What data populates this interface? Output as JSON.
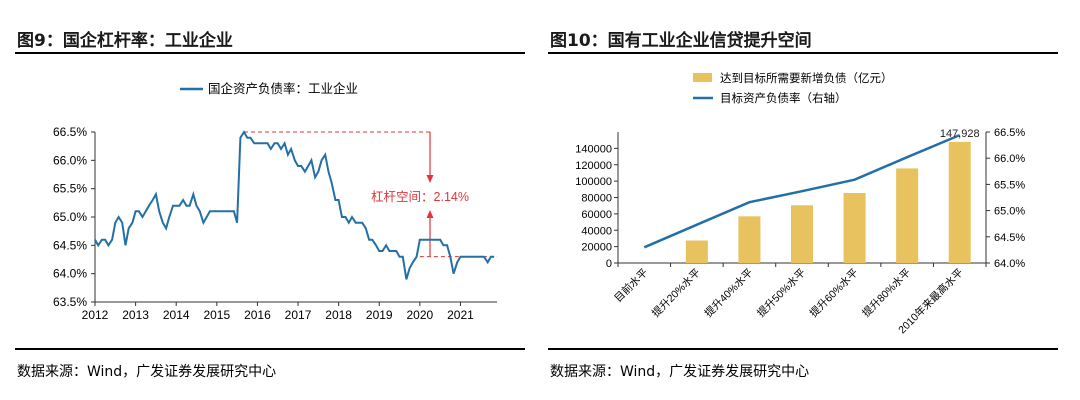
{
  "colors": {
    "line": "#2470a6",
    "bar": "#e7c25e",
    "annotation": "#e0353a",
    "axis": "#333333"
  },
  "left": {
    "title": "图9：国企杠杆率：工业企业",
    "source": "数据来源：Wind，广发证券发展研究中心",
    "annotation_label": "杠杆空间：",
    "annotation_value": "2.14%",
    "chart_data": {
      "type": "line",
      "series": [
        {
          "name": "国企资产负债率：工业企业",
          "points": [
            [
              2012.0,
              64.6
            ],
            [
              2012.08,
              64.5
            ],
            [
              2012.17,
              64.6
            ],
            [
              2012.25,
              64.6
            ],
            [
              2012.33,
              64.5
            ],
            [
              2012.42,
              64.6
            ],
            [
              2012.5,
              64.9
            ],
            [
              2012.58,
              65.0
            ],
            [
              2012.67,
              64.9
            ],
            [
              2012.75,
              64.5
            ],
            [
              2012.83,
              64.8
            ],
            [
              2012.92,
              64.9
            ],
            [
              2013.0,
              65.1
            ],
            [
              2013.08,
              65.1
            ],
            [
              2013.17,
              65.0
            ],
            [
              2013.25,
              65.1
            ],
            [
              2013.33,
              65.2
            ],
            [
              2013.42,
              65.3
            ],
            [
              2013.5,
              65.4
            ],
            [
              2013.58,
              65.1
            ],
            [
              2013.67,
              64.9
            ],
            [
              2013.75,
              64.8
            ],
            [
              2013.83,
              65.0
            ],
            [
              2013.92,
              65.2
            ],
            [
              2014.0,
              65.2
            ],
            [
              2014.08,
              65.2
            ],
            [
              2014.17,
              65.3
            ],
            [
              2014.25,
              65.2
            ],
            [
              2014.33,
              65.2
            ],
            [
              2014.42,
              65.4
            ],
            [
              2014.5,
              65.2
            ],
            [
              2014.58,
              65.1
            ],
            [
              2014.67,
              64.9
            ],
            [
              2014.75,
              65.0
            ],
            [
              2014.83,
              65.1
            ],
            [
              2014.92,
              65.1
            ],
            [
              2015.0,
              65.1
            ],
            [
              2015.08,
              65.1
            ],
            [
              2015.17,
              65.1
            ],
            [
              2015.25,
              65.1
            ],
            [
              2015.33,
              65.1
            ],
            [
              2015.42,
              65.1
            ],
            [
              2015.5,
              64.9
            ],
            [
              2015.58,
              66.4
            ],
            [
              2015.67,
              66.5
            ],
            [
              2015.75,
              66.4
            ],
            [
              2015.83,
              66.4
            ],
            [
              2015.92,
              66.3
            ],
            [
              2016.0,
              66.3
            ],
            [
              2016.08,
              66.3
            ],
            [
              2016.17,
              66.3
            ],
            [
              2016.25,
              66.3
            ],
            [
              2016.33,
              66.2
            ],
            [
              2016.42,
              66.3
            ],
            [
              2016.5,
              66.3
            ],
            [
              2016.58,
              66.2
            ],
            [
              2016.67,
              66.3
            ],
            [
              2016.75,
              66.1
            ],
            [
              2016.83,
              66.2
            ],
            [
              2016.92,
              66.0
            ],
            [
              2017.0,
              65.9
            ],
            [
              2017.08,
              65.9
            ],
            [
              2017.17,
              65.8
            ],
            [
              2017.25,
              65.9
            ],
            [
              2017.33,
              66.0
            ],
            [
              2017.42,
              65.7
            ],
            [
              2017.5,
              65.8
            ],
            [
              2017.58,
              66.0
            ],
            [
              2017.67,
              66.1
            ],
            [
              2017.75,
              65.8
            ],
            [
              2017.83,
              65.6
            ],
            [
              2017.92,
              65.3
            ],
            [
              2018.0,
              65.3
            ],
            [
              2018.08,
              65.0
            ],
            [
              2018.17,
              65.0
            ],
            [
              2018.25,
              64.9
            ],
            [
              2018.33,
              65.0
            ],
            [
              2018.42,
              64.9
            ],
            [
              2018.5,
              64.9
            ],
            [
              2018.58,
              64.9
            ],
            [
              2018.67,
              64.8
            ],
            [
              2018.75,
              64.6
            ],
            [
              2018.83,
              64.6
            ],
            [
              2018.92,
              64.5
            ],
            [
              2019.0,
              64.4
            ],
            [
              2019.08,
              64.4
            ],
            [
              2019.17,
              64.5
            ],
            [
              2019.25,
              64.4
            ],
            [
              2019.33,
              64.4
            ],
            [
              2019.42,
              64.4
            ],
            [
              2019.5,
              64.3
            ],
            [
              2019.58,
              64.3
            ],
            [
              2019.67,
              63.9
            ],
            [
              2019.75,
              64.1
            ],
            [
              2019.83,
              64.2
            ],
            [
              2019.92,
              64.3
            ],
            [
              2020.0,
              64.6
            ],
            [
              2020.08,
              64.6
            ],
            [
              2020.17,
              64.6
            ],
            [
              2020.25,
              64.6
            ],
            [
              2020.33,
              64.6
            ],
            [
              2020.42,
              64.6
            ],
            [
              2020.5,
              64.6
            ],
            [
              2020.58,
              64.5
            ],
            [
              2020.67,
              64.5
            ],
            [
              2020.75,
              64.3
            ],
            [
              2020.83,
              64.0
            ],
            [
              2020.92,
              64.2
            ],
            [
              2021.0,
              64.3
            ],
            [
              2021.08,
              64.3
            ],
            [
              2021.17,
              64.3
            ],
            [
              2021.25,
              64.3
            ],
            [
              2021.33,
              64.3
            ],
            [
              2021.42,
              64.3
            ],
            [
              2021.5,
              64.3
            ],
            [
              2021.58,
              64.3
            ],
            [
              2021.67,
              64.2
            ],
            [
              2021.75,
              64.3
            ],
            [
              2021.83,
              64.3
            ]
          ]
        }
      ],
      "x_ticks": [
        "2012",
        "2013",
        "2014",
        "2015",
        "2016",
        "2017",
        "2018",
        "2019",
        "2020",
        "2021"
      ],
      "y_ticks": [
        "63.5%",
        "64.0%",
        "64.5%",
        "65.0%",
        "65.5%",
        "66.0%",
        "66.5%"
      ],
      "xlim": [
        2012,
        2021.9
      ],
      "ylim": [
        63.5,
        66.5
      ],
      "legend": "top",
      "reference_high": 66.5,
      "reference_low": 64.3
    }
  },
  "right": {
    "title": "图10：国有工业企业信贷提升空间",
    "source": "数据来源：Wind，广发证券发展研究中心",
    "chart_data": {
      "type": "bar",
      "categories": [
        "目前水平",
        "提升20%水平",
        "提升40%水平",
        "提升50%水平",
        "提升60%水平",
        "提升80%水平",
        "2010年来最高水平"
      ],
      "series": [
        {
          "name": "达到目标所需要新增负债（亿元）",
          "values": [
            0,
            27500,
            57000,
            70500,
            85500,
            115500,
            147928
          ]
        },
        {
          "name": "目标资产负债率（右轴）",
          "values": [
            64.3,
            64.73,
            65.16,
            65.37,
            65.59,
            66.02,
            66.44
          ]
        }
      ],
      "data_labels": [
        "147,928"
      ],
      "y_ticks": [
        "0",
        "20000",
        "40000",
        "60000",
        "80000",
        "100000",
        "120000",
        "140000"
      ],
      "y2_ticks": [
        "64.0%",
        "64.5%",
        "65.0%",
        "65.5%",
        "66.0%",
        "66.5%"
      ],
      "ylim": [
        0,
        160000
      ],
      "y2lim": [
        64.0,
        66.5
      ],
      "legend": "top"
    }
  }
}
